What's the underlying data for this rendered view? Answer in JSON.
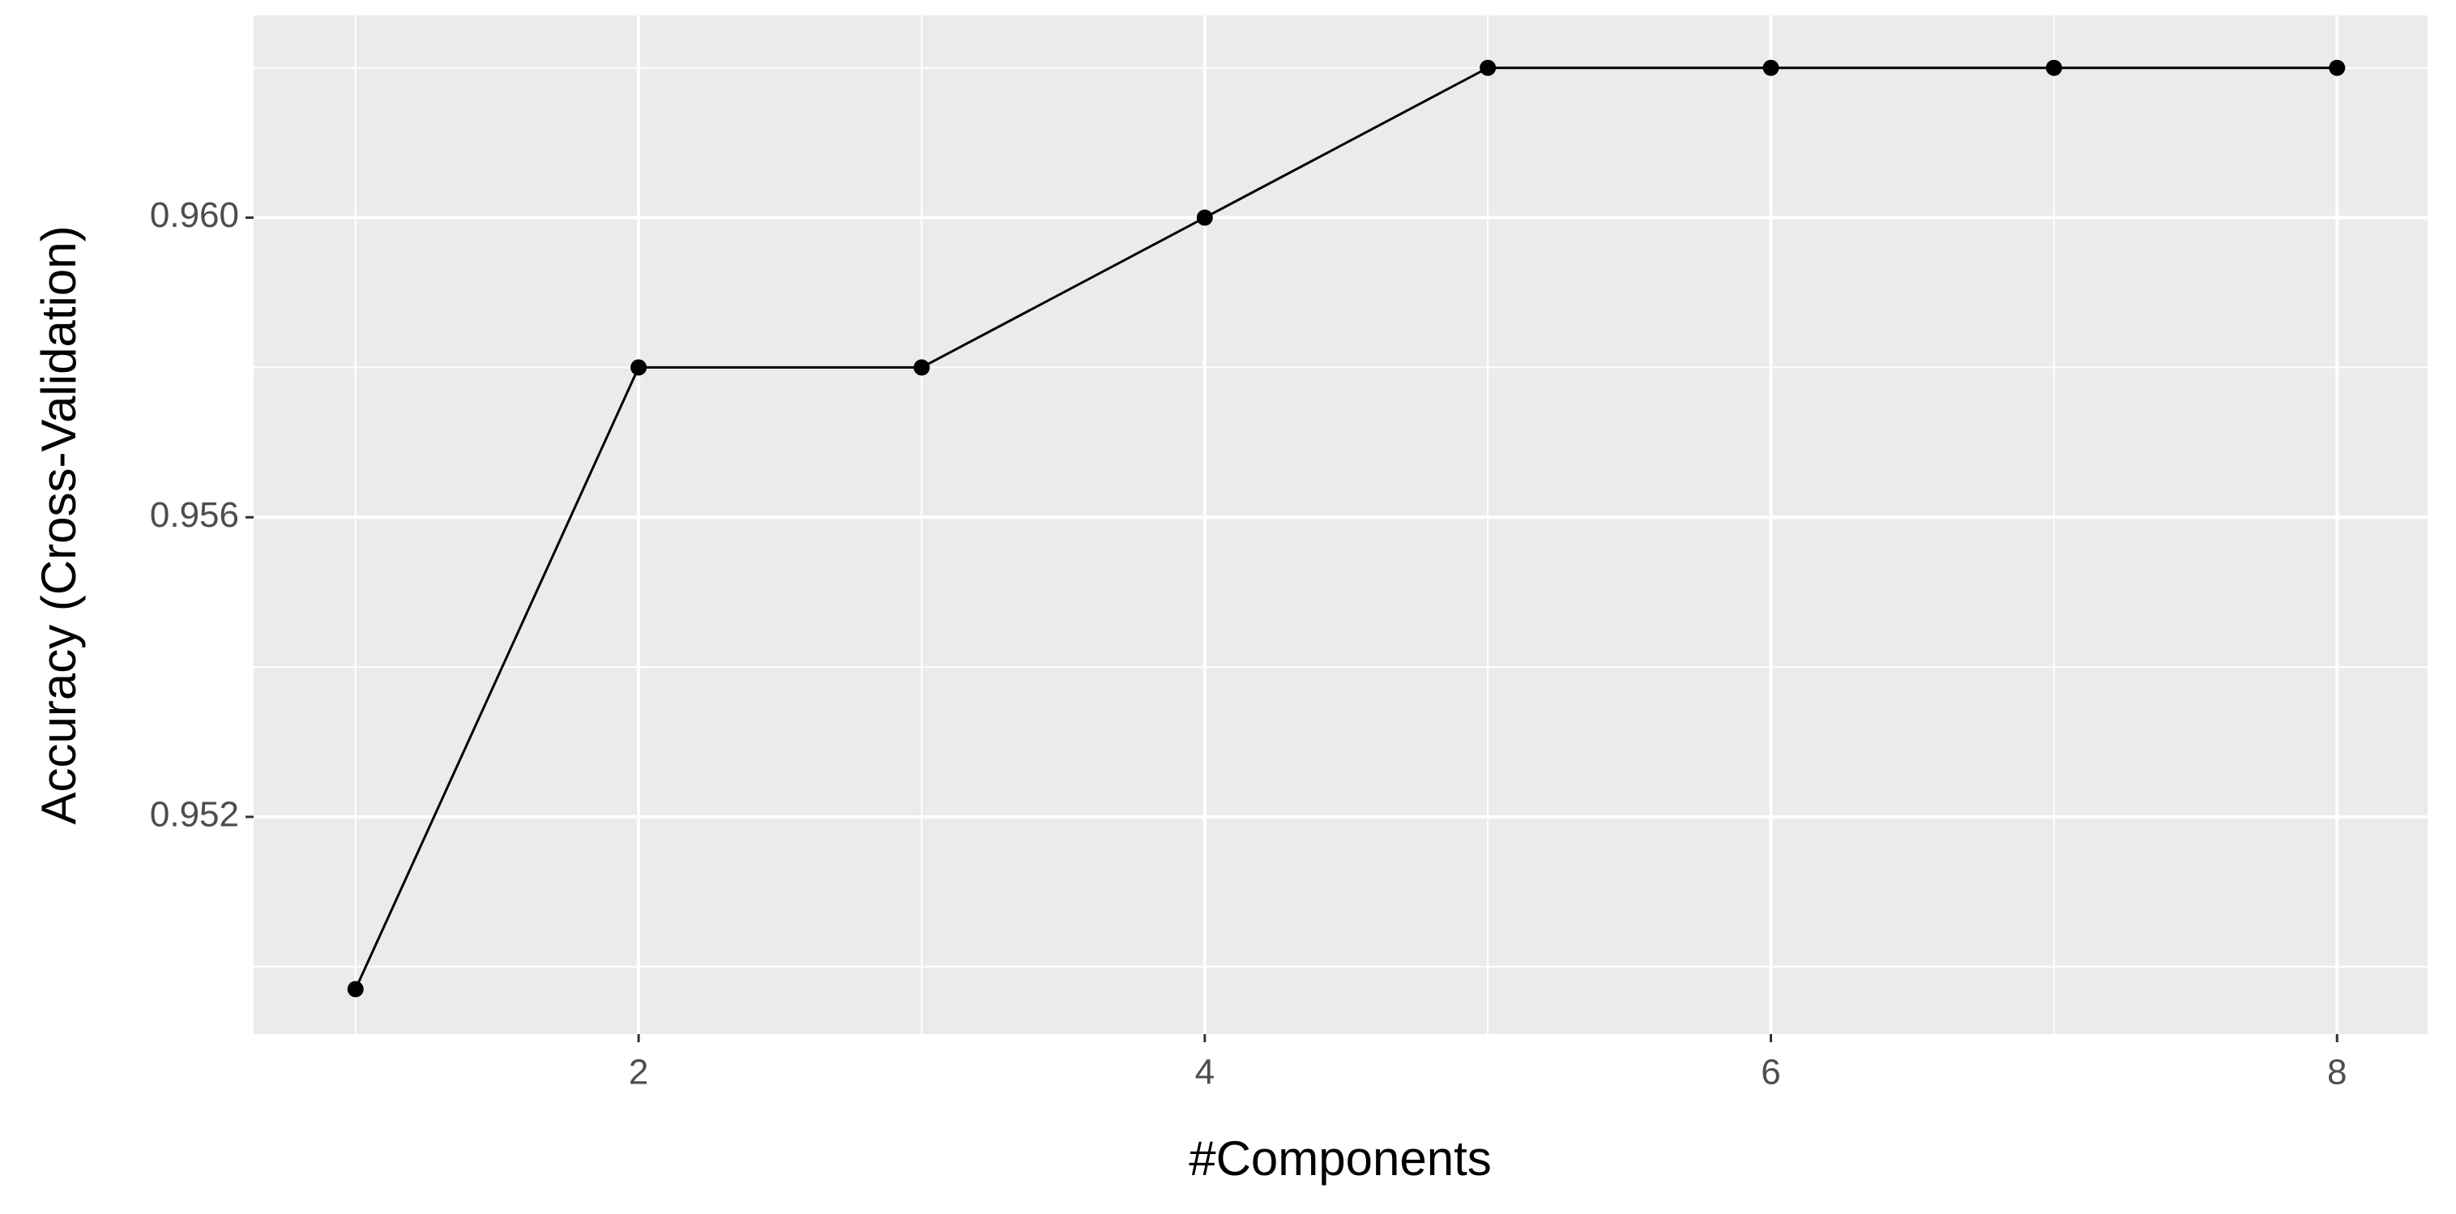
{
  "chart_data": {
    "type": "line",
    "x_label": "#Components",
    "y_label": "Accuracy (Cross-Validation)",
    "x": [
      1,
      2,
      3,
      4,
      5,
      6,
      7,
      8
    ],
    "series": [
      {
        "color": "#000000",
        "values": [
          0.9497,
          0.958,
          0.958,
          0.96,
          0.962,
          0.962,
          0.962,
          0.962
        ]
      }
    ],
    "xlim": [
      0.64,
      8.32
    ],
    "ylim": [
      0.9491,
      0.9627
    ],
    "xticks": [
      2,
      4,
      6,
      8
    ],
    "yticks": [
      {
        "value": 0.952,
        "label": "0.952"
      },
      {
        "value": 0.956,
        "label": "0.956"
      },
      {
        "value": 0.96,
        "label": "0.960"
      }
    ],
    "grid": true,
    "panel_color": "#ebebeb"
  }
}
